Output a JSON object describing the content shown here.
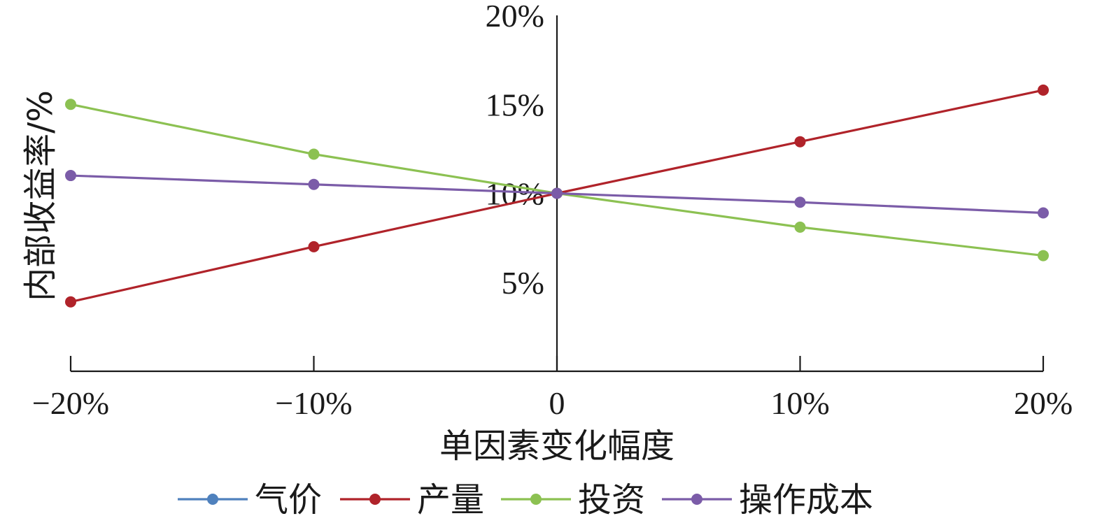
{
  "chart_data": {
    "type": "line",
    "xlabel": "单因素变化幅度",
    "ylabel": "内部收益率/%",
    "x": [
      -20,
      -10,
      0,
      10,
      20
    ],
    "x_ticks": [
      {
        "value": -20,
        "label": "−20%"
      },
      {
        "value": -10,
        "label": "−10%"
      },
      {
        "value": 0,
        "label": "0"
      },
      {
        "value": 10,
        "label": "10%"
      },
      {
        "value": 20,
        "label": "20%"
      }
    ],
    "y_ticks": [
      {
        "value": 5,
        "label": "5%"
      },
      {
        "value": 10,
        "label": "10%"
      },
      {
        "value": 15,
        "label": "15%"
      },
      {
        "value": 20,
        "label": "20%"
      }
    ],
    "xlim": [
      -20,
      20
    ],
    "ylim": [
      0,
      20
    ],
    "grid": false,
    "legend_position": "bottom",
    "series": [
      {
        "name": "气价",
        "color": "#4f81bd",
        "values": [
          null,
          null,
          10.0,
          null,
          null
        ]
      },
      {
        "name": "产量",
        "color": "#b0232a",
        "values": [
          3.9,
          7.0,
          10.0,
          12.9,
          15.8
        ]
      },
      {
        "name": "投资",
        "color": "#8cc152",
        "values": [
          15.0,
          12.2,
          10.0,
          8.1,
          6.5
        ]
      },
      {
        "name": "操作成本",
        "color": "#7b5ca8",
        "values": [
          11.0,
          10.5,
          10.0,
          9.5,
          8.9
        ]
      }
    ]
  }
}
